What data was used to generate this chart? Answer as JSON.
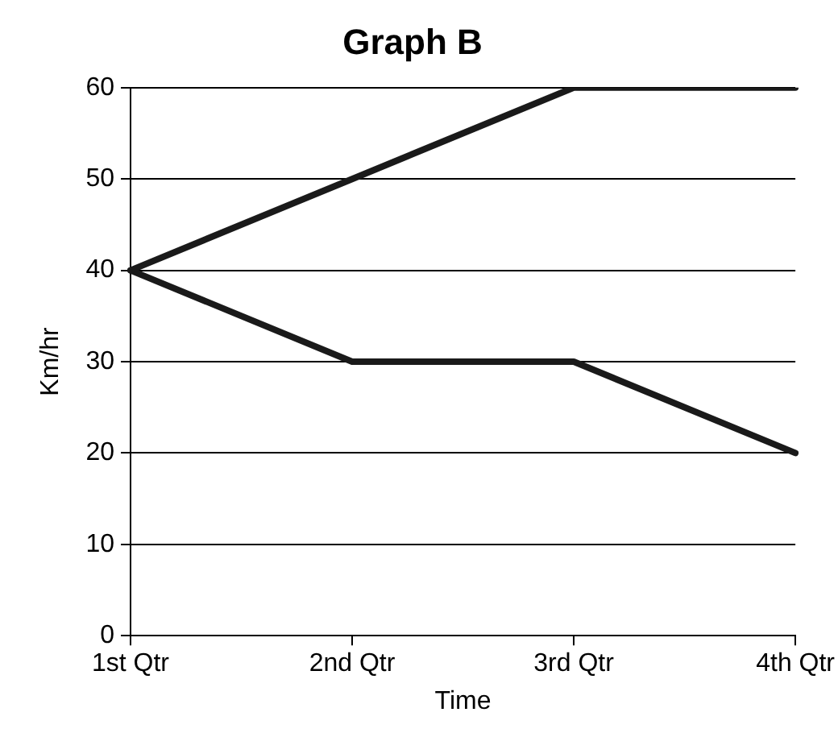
{
  "chart_data": {
    "type": "line",
    "title": "Graph B",
    "xlabel": "Time",
    "ylabel": "Km/hr",
    "categories": [
      "1st Qtr",
      "2nd Qtr",
      "3rd Qtr",
      "4th Qtr"
    ],
    "series": [
      {
        "color": "#1a1a1a",
        "values": [
          40,
          50,
          60,
          60
        ]
      },
      {
        "color": "#1a1a1a",
        "values": [
          40,
          30,
          30,
          20
        ]
      }
    ],
    "ylim": [
      0,
      60
    ],
    "yticks": [
      0,
      10,
      20,
      30,
      40,
      50,
      60
    ],
    "grid": "y",
    "legend": false,
    "marker": "none",
    "line_style": "solid"
  }
}
